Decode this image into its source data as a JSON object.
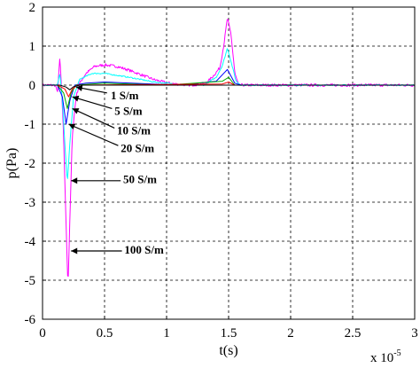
{
  "chart_data": {
    "type": "line",
    "xlabel": "t(s)",
    "ylabel": "p(Pa)",
    "x_exponent_label": "x 10",
    "x_exponent_power": "-5",
    "xlim": [
      0,
      3
    ],
    "ylim": [
      -6,
      2
    ],
    "grid": true,
    "x_ticks": [
      0,
      0.5,
      1,
      1.5,
      2,
      2.5,
      3
    ],
    "x_tick_labels": [
      "0",
      "0.5",
      "1",
      "1.5",
      "2",
      "2.5",
      "3"
    ],
    "y_ticks": [
      -6,
      -5,
      -4,
      -3,
      -2,
      -1,
      0,
      1,
      2
    ],
    "y_tick_labels": [
      "-6",
      "-5",
      "-4",
      "-3",
      "-2",
      "-1",
      "0",
      "1",
      "2"
    ],
    "series": [
      {
        "name": "100 S/m",
        "color": "#ff00ff",
        "noise": 0.035,
        "points": [
          [
            0,
            0
          ],
          [
            0.1,
            0
          ],
          [
            0.11,
            -0.05
          ],
          [
            0.12,
            -0.25
          ],
          [
            0.13,
            0.3
          ],
          [
            0.14,
            0.7
          ],
          [
            0.15,
            0.1
          ],
          [
            0.17,
            -1.3
          ],
          [
            0.19,
            -3.6
          ],
          [
            0.205,
            -5.2
          ],
          [
            0.22,
            -3.5
          ],
          [
            0.24,
            -1.3
          ],
          [
            0.27,
            -0.3
          ],
          [
            0.3,
            0.05
          ],
          [
            0.35,
            0.3
          ],
          [
            0.42,
            0.48
          ],
          [
            0.5,
            0.52
          ],
          [
            0.6,
            0.48
          ],
          [
            0.7,
            0.38
          ],
          [
            0.8,
            0.26
          ],
          [
            0.9,
            0.14
          ],
          [
            1.0,
            0.06
          ],
          [
            1.1,
            0.02
          ],
          [
            1.2,
            0
          ],
          [
            1.32,
            0.05
          ],
          [
            1.38,
            0.25
          ],
          [
            1.43,
            0.45
          ],
          [
            1.46,
            1.0
          ],
          [
            1.49,
            1.72
          ],
          [
            1.52,
            1.3
          ],
          [
            1.55,
            0.3
          ],
          [
            1.58,
            0
          ],
          [
            1.7,
            0
          ],
          [
            3.0,
            0
          ]
        ]
      },
      {
        "name": "50 S/m",
        "color": "#00ffff",
        "noise": 0.015,
        "points": [
          [
            0,
            0
          ],
          [
            0.12,
            0
          ],
          [
            0.14,
            0.3
          ],
          [
            0.16,
            -0.4
          ],
          [
            0.18,
            -1.5
          ],
          [
            0.2,
            -2.5
          ],
          [
            0.22,
            -1.5
          ],
          [
            0.25,
            -0.3
          ],
          [
            0.3,
            0.15
          ],
          [
            0.4,
            0.3
          ],
          [
            0.5,
            0.3
          ],
          [
            0.7,
            0.2
          ],
          [
            0.9,
            0.08
          ],
          [
            1.1,
            0.02
          ],
          [
            1.3,
            0
          ],
          [
            1.4,
            0.2
          ],
          [
            1.45,
            0.5
          ],
          [
            1.49,
            0.95
          ],
          [
            1.52,
            0.6
          ],
          [
            1.56,
            0.1
          ],
          [
            1.6,
            0
          ],
          [
            3.0,
            0
          ]
        ]
      },
      {
        "name": "20 S/m",
        "color": "#0000ff",
        "noise": 0,
        "points": [
          [
            0,
            0
          ],
          [
            0.12,
            0
          ],
          [
            0.16,
            -0.3
          ],
          [
            0.19,
            -1.0
          ],
          [
            0.22,
            -0.4
          ],
          [
            0.26,
            0
          ],
          [
            0.35,
            0.05
          ],
          [
            0.5,
            0.08
          ],
          [
            0.8,
            0.04
          ],
          [
            1.1,
            0
          ],
          [
            1.4,
            0.1
          ],
          [
            1.49,
            0.4
          ],
          [
            1.55,
            0.05
          ],
          [
            1.6,
            0
          ],
          [
            3.0,
            0
          ]
        ]
      },
      {
        "name": "10 S/m",
        "color": "#00aa00",
        "noise": 0,
        "points": [
          [
            0,
            0
          ],
          [
            0.12,
            0
          ],
          [
            0.17,
            -0.2
          ],
          [
            0.2,
            -0.6
          ],
          [
            0.23,
            -0.2
          ],
          [
            0.27,
            0
          ],
          [
            0.5,
            0.05
          ],
          [
            1.0,
            0
          ],
          [
            1.45,
            0.1
          ],
          [
            1.5,
            0.2
          ],
          [
            1.55,
            0
          ],
          [
            3.0,
            0
          ]
        ]
      },
      {
        "name": "5 S/m",
        "color": "#ff0000",
        "noise": 0,
        "points": [
          [
            0,
            0
          ],
          [
            0.12,
            0
          ],
          [
            0.18,
            -0.1
          ],
          [
            0.21,
            -0.3
          ],
          [
            0.24,
            -0.1
          ],
          [
            0.28,
            0
          ],
          [
            1.45,
            0.03
          ],
          [
            1.5,
            0.08
          ],
          [
            1.55,
            0
          ],
          [
            3.0,
            0
          ]
        ]
      },
      {
        "name": "1 S/m",
        "color": "#000000",
        "noise": 0,
        "points": [
          [
            0,
            0
          ],
          [
            0.14,
            0
          ],
          [
            0.19,
            -0.05
          ],
          [
            0.22,
            -0.12
          ],
          [
            0.25,
            -0.04
          ],
          [
            0.3,
            0
          ],
          [
            3.0,
            0
          ]
        ]
      }
    ],
    "annotations": [
      {
        "text": "1 S/m",
        "label_x": 0.55,
        "label_y": -0.25,
        "arrow_from": [
          0.52,
          -0.2
        ],
        "arrow_to": [
          0.27,
          -0.05
        ]
      },
      {
        "text": "5 S/m",
        "label_x": 0.58,
        "label_y": -0.65,
        "arrow_from": [
          0.56,
          -0.6
        ],
        "arrow_to": [
          0.24,
          -0.3
        ]
      },
      {
        "text": "10 S/m",
        "label_x": 0.6,
        "label_y": -1.15,
        "arrow_from": [
          0.58,
          -1.1
        ],
        "arrow_to": [
          0.24,
          -0.6
        ]
      },
      {
        "text": "20 S/m",
        "label_x": 0.63,
        "label_y": -1.6,
        "arrow_from": [
          0.61,
          -1.55
        ],
        "arrow_to": [
          0.21,
          -1.0
        ]
      },
      {
        "text": "50 S/m",
        "label_x": 0.65,
        "label_y": -2.4,
        "arrow_from": [
          0.63,
          -2.45
        ],
        "arrow_to": [
          0.23,
          -2.45
        ]
      },
      {
        "text": "100 S/m",
        "label_x": 0.66,
        "label_y": -4.2,
        "arrow_from": [
          0.64,
          -4.25
        ],
        "arrow_to": [
          0.23,
          -4.25
        ]
      }
    ]
  }
}
